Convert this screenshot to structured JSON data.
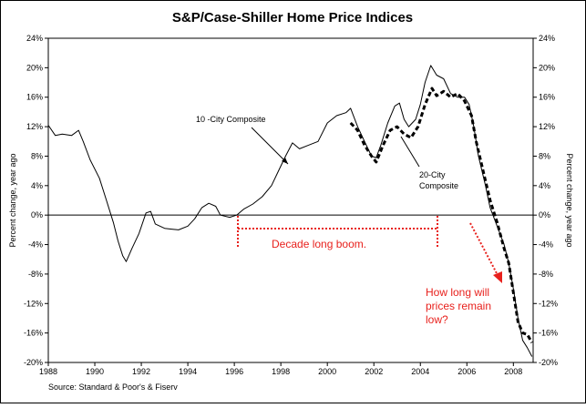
{
  "chart_data": {
    "type": "line",
    "title": "S&P/Case-Shiller Home Price Indices",
    "y_label": "Percent change, year ago",
    "y2_label": "Percent change, year ago",
    "source": "Source: Standard & Poor's & Fiserv",
    "xlim": [
      1988,
      2008.85
    ],
    "xticks": [
      1988,
      1990,
      1992,
      1994,
      1996,
      1998,
      2000,
      2002,
      2004,
      2006,
      2008
    ],
    "ylim": [
      -20,
      24
    ],
    "yticks": [
      {
        "value": -20,
        "label": "-20%"
      },
      {
        "value": -16,
        "label": "-16%"
      },
      {
        "value": -12,
        "label": "-12%"
      },
      {
        "value": -8,
        "label": "-8%"
      },
      {
        "value": -4,
        "label": "-4%"
      },
      {
        "value": 0,
        "label": "0%"
      },
      {
        "value": 4,
        "label": "4%"
      },
      {
        "value": 8,
        "label": "8%"
      },
      {
        "value": 12,
        "label": "12%"
      },
      {
        "value": 16,
        "label": "16%"
      },
      {
        "value": 20,
        "label": "20%"
      },
      {
        "value": 24,
        "label": "24%"
      }
    ],
    "y2lim": [
      -20,
      24
    ],
    "y2ticks": [
      {
        "value": -20,
        "label": "-20%"
      },
      {
        "value": -16,
        "label": "-16%"
      },
      {
        "value": -12,
        "label": "-12%"
      },
      {
        "value": -8,
        "label": "-8%"
      },
      {
        "value": -4,
        "label": "-4%"
      },
      {
        "value": 0,
        "label": "0%"
      },
      {
        "value": 4,
        "label": "4%"
      },
      {
        "value": 8,
        "label": "8%"
      },
      {
        "value": 12,
        "label": "12%"
      },
      {
        "value": 16,
        "label": "16%"
      },
      {
        "value": 20,
        "label": "20%"
      },
      {
        "value": 24,
        "label": "24%"
      }
    ],
    "series": [
      {
        "name": "10 -City Composite",
        "color": "#000000",
        "style": "solid",
        "x": [
          1988.0,
          1988.3,
          1988.6,
          1989.0,
          1989.3,
          1989.5,
          1989.8,
          1990.2,
          1990.5,
          1990.8,
          1991.0,
          1991.2,
          1991.35,
          1991.6,
          1991.9,
          1992.2,
          1992.4,
          1992.6,
          1993.0,
          1993.3,
          1993.6,
          1994.0,
          1994.3,
          1994.6,
          1994.9,
          1995.2,
          1995.4,
          1995.8,
          1996.1,
          1996.4,
          1996.8,
          1997.2,
          1997.6,
          1997.9,
          1998.2,
          1998.5,
          1998.8,
          1999.2,
          1999.6,
          2000.0,
          2000.4,
          2000.8,
          2001.0,
          2001.3,
          2001.6,
          2001.9,
          2002.1,
          2002.3,
          2002.6,
          2002.9,
          2003.1,
          2003.3,
          2003.5,
          2003.8,
          2004.0,
          2004.2,
          2004.45,
          2004.7,
          2005.0,
          2005.3,
          2005.6,
          2005.9,
          2006.1,
          2006.3,
          2006.5,
          2006.8,
          2007.0,
          2007.3,
          2007.6,
          2007.8,
          2008.0,
          2008.2,
          2008.4,
          2008.6,
          2008.8
        ],
        "values": [
          12.2,
          10.8,
          11.0,
          10.8,
          11.5,
          10.0,
          7.5,
          5.0,
          2.0,
          -1.0,
          -3.5,
          -5.5,
          -6.3,
          -4.5,
          -2.5,
          0.3,
          0.5,
          -1.2,
          -1.8,
          -1.9,
          -2.0,
          -1.5,
          -0.5,
          1.0,
          1.6,
          1.2,
          0.0,
          -0.3,
          0.0,
          0.8,
          1.5,
          2.5,
          4.0,
          6.0,
          8.0,
          9.8,
          9.0,
          9.5,
          10.0,
          12.5,
          13.5,
          13.9,
          14.5,
          12.0,
          10.0,
          8.0,
          7.8,
          9.5,
          12.5,
          14.8,
          15.2,
          13.0,
          12.0,
          13.0,
          15.0,
          18.0,
          20.3,
          19.0,
          18.5,
          16.5,
          16.0,
          16.0,
          15.0,
          12.0,
          8.0,
          4.0,
          1.0,
          -1.5,
          -4.0,
          -6.5,
          -10.0,
          -14.0,
          -17.0,
          -18.0,
          -19.2
        ]
      },
      {
        "name": "20-City Composite",
        "color": "#000000",
        "style": "dashed",
        "x": [
          2001.0,
          2001.3,
          2001.6,
          2001.9,
          2002.1,
          2002.4,
          2002.7,
          2003.0,
          2003.3,
          2003.6,
          2003.9,
          2004.2,
          2004.5,
          2004.7,
          2005.0,
          2005.3,
          2005.6,
          2005.9,
          2006.2,
          2006.4,
          2006.7,
          2007.0,
          2007.3,
          2007.6,
          2007.8,
          2008.0,
          2008.2,
          2008.4,
          2008.6,
          2008.8
        ],
        "values": [
          12.5,
          11.5,
          9.5,
          8.0,
          7.2,
          9.5,
          11.5,
          12.0,
          11.0,
          10.5,
          12.0,
          15.0,
          17.2,
          16.2,
          16.8,
          16.0,
          16.5,
          15.5,
          13.5,
          10.0,
          6.0,
          2.0,
          -1.0,
          -4.5,
          -6.5,
          -10.5,
          -14.5,
          -16.0,
          -16.2,
          -17.3
        ]
      }
    ],
    "annotations": [
      {
        "lines": [
          "10 -City Composite"
        ],
        "color": "#000000"
      },
      {
        "lines": [
          "20-City",
          "Composite"
        ],
        "color": "#000000"
      },
      {
        "lines": [
          "Decade long boom."
        ],
        "color": "#e8211d"
      },
      {
        "lines": [
          "How long will",
          "prices remain",
          "low?"
        ],
        "color": "#e8211d"
      }
    ]
  }
}
